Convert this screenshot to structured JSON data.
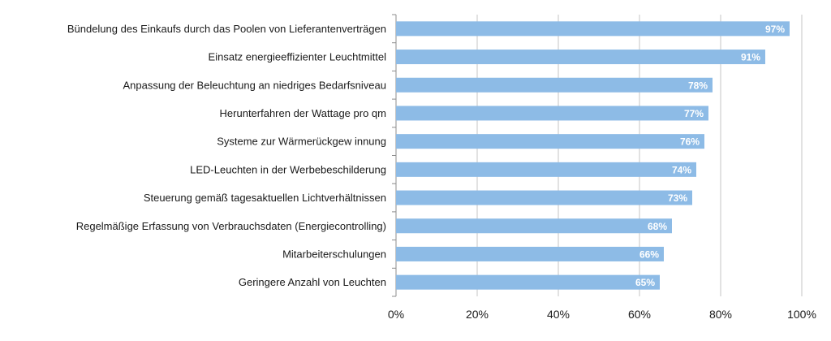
{
  "chart_data": {
    "type": "bar",
    "orientation": "horizontal",
    "title": "",
    "xlabel": "",
    "ylabel": "",
    "xlim": [
      0,
      100
    ],
    "grid": true,
    "legend": "none",
    "bar_color": "#8dbbe6",
    "grid_color": "#c6c6c6",
    "x_ticks": [
      "0%",
      "20%",
      "40%",
      "60%",
      "80%",
      "100%"
    ],
    "categories": [
      "Bündelung des Einkaufs durch das Poolen von Lieferantenverträgen",
      "Einsatz energieeffizienter Leuchtmittel",
      "Anpassung der Beleuchtung an niedriges Bedarfsniveau",
      "Herunterfahren der Wattage pro qm",
      "Systeme zur Wärmerückgew innung",
      "LED-Leuchten in der Werbebeschilderung",
      "Steuerung gemäß tagesaktuellen Lichtverhältnissen",
      "Regelmäßige Erfassung von Verbrauchsdaten (Energiecontrolling)",
      "Mitarbeiterschulungen",
      "Geringere Anzahl von Leuchten"
    ],
    "values": [
      97,
      91,
      78,
      77,
      76,
      74,
      73,
      68,
      66,
      65
    ],
    "value_labels": [
      "97%",
      "91%",
      "78%",
      "77%",
      "76%",
      "74%",
      "73%",
      "68%",
      "66%",
      "65%"
    ]
  }
}
